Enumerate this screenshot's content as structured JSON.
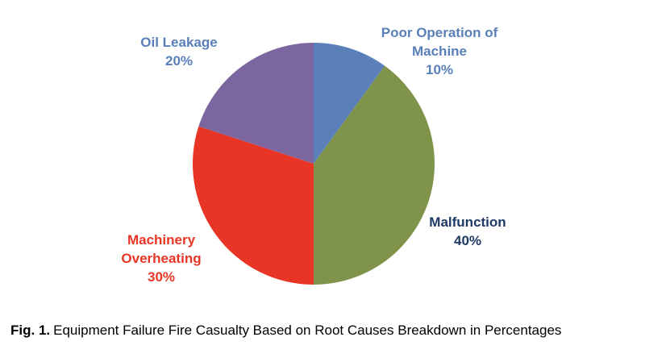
{
  "chart_data": {
    "type": "pie",
    "categories": [
      "Poor Operation of Machine",
      "Malfunction",
      "Machinery Overheating",
      "Oil Leakage"
    ],
    "values": [
      10,
      40,
      30,
      20
    ],
    "value_labels": [
      "10%",
      "40%",
      "30%",
      "20%"
    ],
    "colors": [
      "#5b80b9",
      "#7f944a",
      "#e83526",
      "#7c66a0"
    ],
    "label_colors": [
      "#5b80b9",
      "#1f3864",
      "#e83526",
      "#5b80b9"
    ],
    "start_angle": 0,
    "direction": "clockwise"
  },
  "figure": {
    "label": "Fig. 1.",
    "caption": "Equipment Failure Fire Casualty Based on Root Causes Breakdown in Percentages"
  }
}
